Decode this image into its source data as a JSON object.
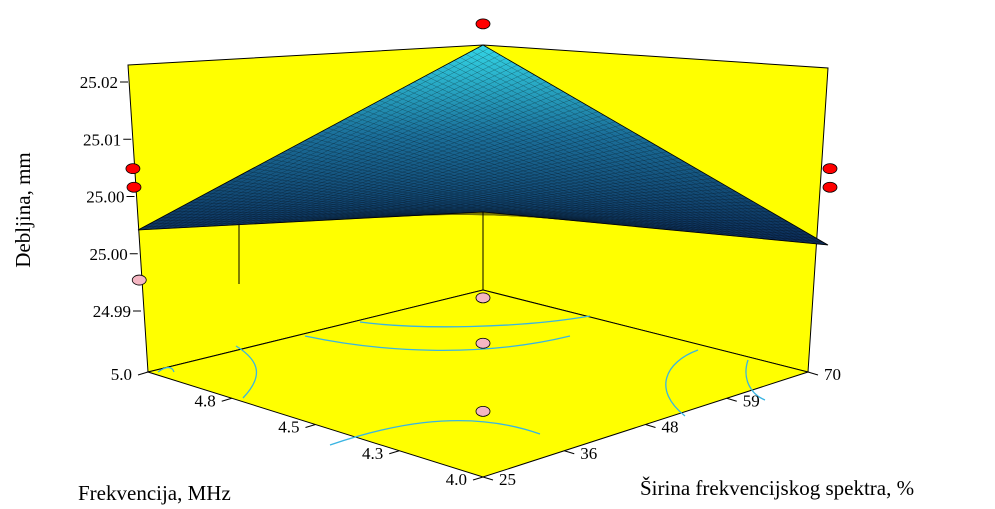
{
  "chart_data": {
    "type": "surface3d",
    "title": "",
    "zlabel": "Debljina, mm",
    "xlabel": "Frekvencija, MHz",
    "ylabel": "Širina frekvencijskog spektra, %",
    "x_ticks": [
      "4.0",
      "4.3",
      "4.5",
      "4.8",
      "5.0"
    ],
    "y_ticks": [
      "25",
      "36",
      "48",
      "59",
      "70"
    ],
    "z_ticks": [
      "24.99",
      "25.00",
      "25.00",
      "25.01",
      "25.02"
    ],
    "xlim": [
      4.0,
      5.0
    ],
    "ylim": [
      25,
      70
    ],
    "zlim": [
      24.985,
      25.022
    ],
    "surface_corners": [
      {
        "x": 4.0,
        "y": 25,
        "z": 25.002
      },
      {
        "x": 5.0,
        "y": 25,
        "z": 25.005
      },
      {
        "x": 4.0,
        "y": 70,
        "z": 25.005
      },
      {
        "x": 5.0,
        "y": 70,
        "z": 25.021
      }
    ],
    "design_points": [
      {
        "x": 5.0,
        "y": 70,
        "z": 25.021,
        "position": "above"
      },
      {
        "x": 5.0,
        "y": 25,
        "z": 25.005,
        "position": "above"
      },
      {
        "x": 5.0,
        "y": 25,
        "z": 25.008,
        "position": "above"
      },
      {
        "x": 5.0,
        "y": 25,
        "z": 24.99,
        "position": "below"
      },
      {
        "x": 4.0,
        "y": 70,
        "z": 25.005,
        "position": "above"
      },
      {
        "x": 4.0,
        "y": 70,
        "z": 25.008,
        "position": "above"
      },
      {
        "x": 4.5,
        "y": 47.5,
        "z": 25.003,
        "position": "below"
      },
      {
        "x": 4.5,
        "y": 47.5,
        "z": 24.995,
        "position": "below"
      },
      {
        "x": 4.5,
        "y": 47.5,
        "z": 24.983,
        "position": "below"
      }
    ],
    "colors": {
      "background": "#ffff00",
      "surface_low": "#0b2a55",
      "surface_high": "#33d6e6",
      "mesh": "#000000",
      "contour": "#39b4e2",
      "point_above": "#ff0000",
      "point_below": "#f4b6c2"
    },
    "grid": false
  }
}
